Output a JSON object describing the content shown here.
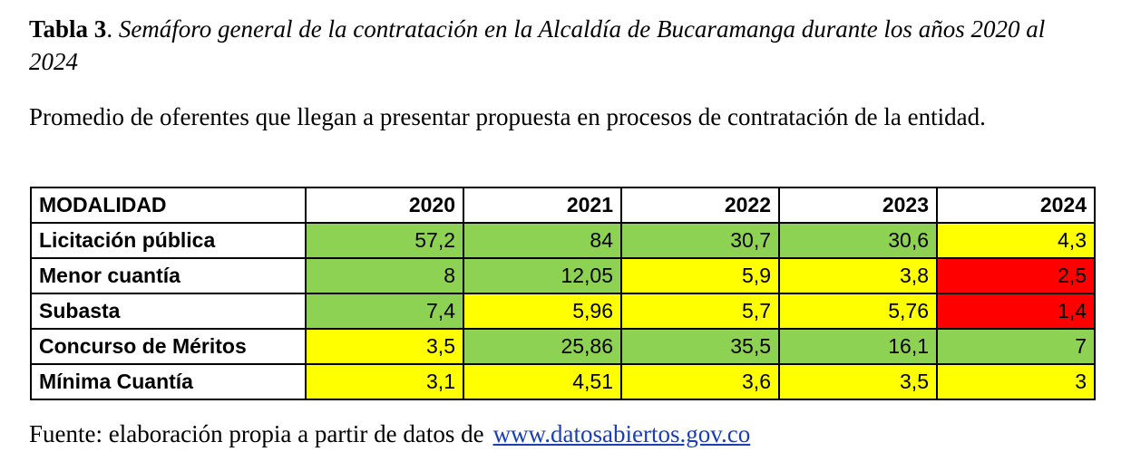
{
  "caption": {
    "label": "Tabla 3",
    "separator": ". ",
    "title": "Semáforo general de la contratación en la Alcaldía de Bucaramanga durante los años 2020 al 2024"
  },
  "subtitle": "Promedio de oferentes que llegan a presentar propuesta en procesos de contratación de la entidad.",
  "table": {
    "headers": [
      "MODALIDAD",
      "2020",
      "2021",
      "2022",
      "2023",
      "2024"
    ],
    "rows": [
      {
        "modalidad": "Licitación pública",
        "values": [
          "57,2",
          "84",
          "30,7",
          "30,6",
          "4,3"
        ],
        "status": [
          "green",
          "green",
          "green",
          "green",
          "yellow"
        ]
      },
      {
        "modalidad": "Menor cuantía",
        "values": [
          "8",
          "12,05",
          "5,9",
          "3,8",
          "2,5"
        ],
        "status": [
          "green",
          "green",
          "yellow",
          "yellow",
          "red"
        ]
      },
      {
        "modalidad": "Subasta",
        "values": [
          "7,4",
          "5,96",
          "5,7",
          "5,76",
          "1,4"
        ],
        "status": [
          "green",
          "yellow",
          "yellow",
          "yellow",
          "red"
        ]
      },
      {
        "modalidad": "Concurso de Méritos",
        "values": [
          "3,5",
          "25,86",
          "35,5",
          "16,1",
          "7"
        ],
        "status": [
          "yellow",
          "green",
          "green",
          "green",
          "green"
        ]
      },
      {
        "modalidad": "Mínima Cuantía",
        "values": [
          "3,1",
          "4,51",
          "3,6",
          "3,5",
          "3"
        ],
        "status": [
          "yellow",
          "yellow",
          "yellow",
          "yellow",
          "yellow"
        ]
      }
    ],
    "status_colors": {
      "green": "#8ed253",
      "yellow": "#ffff00",
      "red": "#ff0000"
    }
  },
  "source": {
    "text": "Fuente: elaboración propia a partir de datos de",
    "link_text": "www.datosabiertos.gov.co",
    "link_color": "#1a3fb5"
  }
}
